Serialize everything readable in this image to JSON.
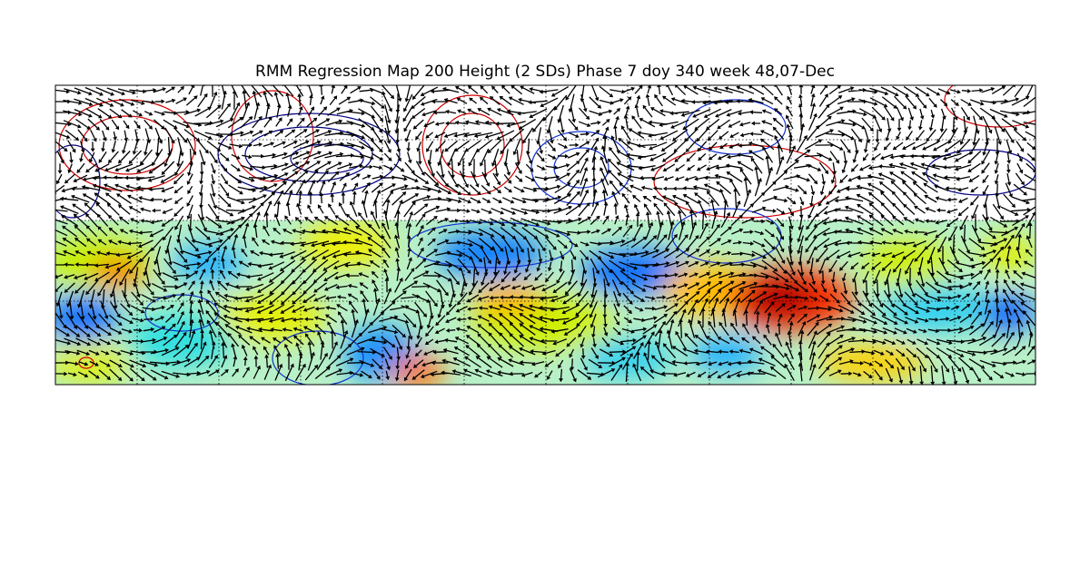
{
  "title": "RMM Regression Map 200 Height (2 SDs) Phase 7 doy 340 week 48,07-Dec"
}
